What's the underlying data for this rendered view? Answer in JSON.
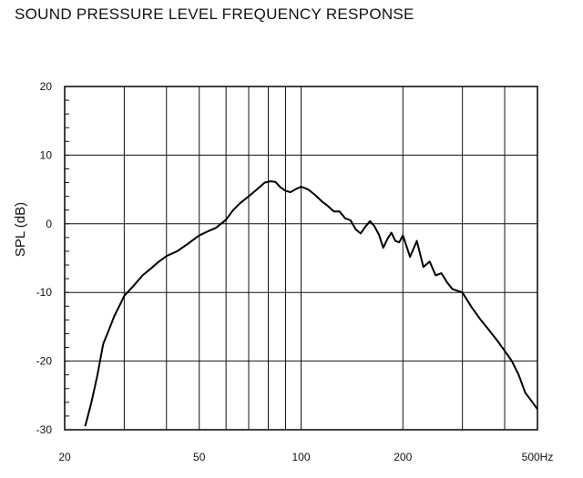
{
  "chart_data": {
    "type": "line",
    "title": "SOUND PRESSURE LEVEL FREQUENCY RESPONSE",
    "xlabel": "",
    "ylabel": "SPL (dB)",
    "x_scale": "log",
    "xlim": [
      20,
      500
    ],
    "ylim": [
      -30,
      20
    ],
    "grid": true,
    "x_tick_values": [
      20,
      50,
      100,
      200,
      500
    ],
    "x_tick_labels": [
      "20",
      "50",
      "100",
      "200",
      "500Hz"
    ],
    "y_ticks": [
      20,
      10,
      0,
      -10,
      -20,
      -30
    ],
    "y_tick_labels": [
      "20",
      "10",
      "0",
      "-10",
      "-20",
      "-30"
    ],
    "series": [
      {
        "name": "",
        "color": "#000000",
        "x": [
          23,
          24,
          25,
          26,
          27,
          28,
          29,
          30,
          32,
          34,
          36,
          38,
          40,
          43,
          46,
          50,
          53,
          56,
          60,
          63,
          66,
          70,
          74,
          78,
          81,
          84,
          87,
          90,
          93,
          97,
          100,
          105,
          110,
          115,
          120,
          125,
          130,
          135,
          140,
          145,
          150,
          155,
          160,
          165,
          170,
          175,
          180,
          185,
          190,
          195,
          200,
          210,
          220,
          230,
          240,
          250,
          260,
          270,
          280,
          300,
          320,
          340,
          360,
          380,
          400,
          420,
          440,
          460,
          480,
          500
        ],
        "y": [
          -29.5,
          -26,
          -22,
          -17.5,
          -15.5,
          -13.5,
          -12,
          -10.5,
          -9,
          -7.5,
          -6.5,
          -5.5,
          -4.7,
          -4,
          -3,
          -1.7,
          -1.1,
          -0.6,
          0.6,
          2,
          3,
          4,
          5,
          6,
          6.2,
          6.1,
          5.3,
          4.8,
          4.6,
          5.1,
          5.4,
          5,
          4.2,
          3.3,
          2.6,
          1.8,
          1.8,
          0.8,
          0.5,
          -0.8,
          -1.4,
          -0.4,
          0.4,
          -0.4,
          -1.6,
          -3.5,
          -2.2,
          -1.3,
          -2.5,
          -2.7,
          -1.7,
          -4.8,
          -2.5,
          -6.3,
          -5.5,
          -7.5,
          -7.2,
          -8.5,
          -9.5,
          -10,
          -12.2,
          -14,
          -15.5,
          -17,
          -18.5,
          -20,
          -22,
          -24.6,
          -25.8,
          -27
        ]
      }
    ]
  }
}
